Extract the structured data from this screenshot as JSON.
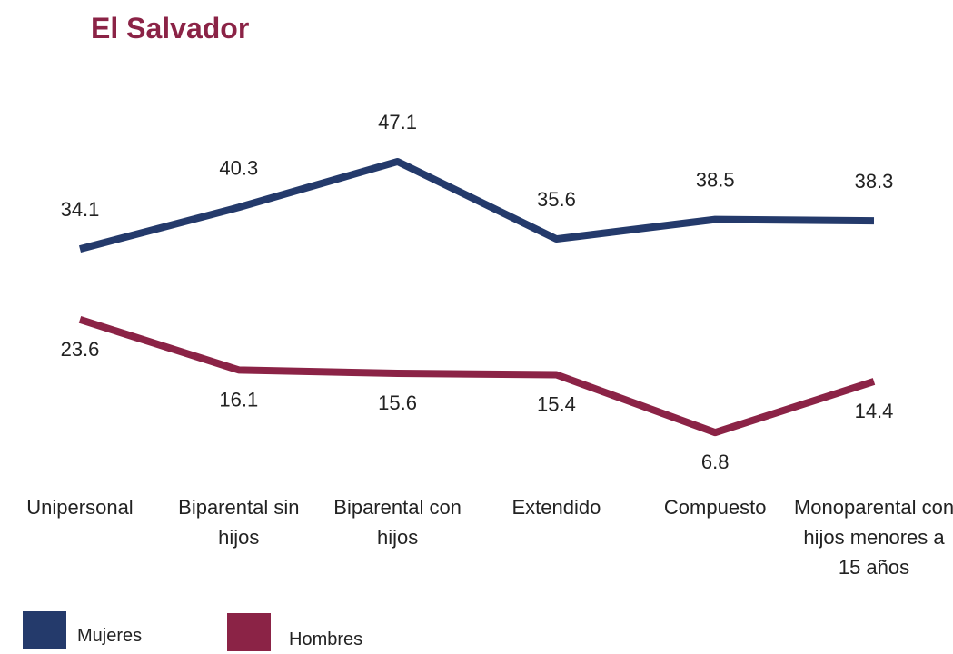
{
  "chart_data": {
    "type": "line",
    "title": "El Salvador",
    "categories": [
      "Unipersonal",
      "Biparental sin hijos",
      "Biparental con hijos",
      "Extendido",
      "Compuesto",
      "Monoparental con hijos menores a 15 años"
    ],
    "series": [
      {
        "name": "Mujeres",
        "color": "#243a6b",
        "values": [
          34.1,
          40.3,
          47.1,
          35.6,
          38.5,
          38.3
        ]
      },
      {
        "name": "Hombres",
        "color": "#8b2346",
        "values": [
          23.6,
          16.1,
          15.6,
          15.4,
          6.8,
          14.4
        ]
      }
    ],
    "ylim": [
      0,
      50
    ]
  }
}
